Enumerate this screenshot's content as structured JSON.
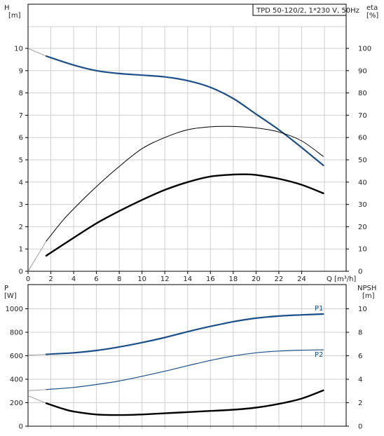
{
  "pump_label": "TPD 50-120/2, 1*230 V, 50Hz",
  "colors": {
    "blue": "#1b4f8a",
    "black": "#000000",
    "grid": "#cfcfcf"
  },
  "chart_data": [
    {
      "type": "line",
      "name": "top",
      "xlabel": "Q [m³/h]",
      "xlim": [
        0,
        26
      ],
      "x_ticks": [
        0,
        2,
        4,
        6,
        8,
        10,
        12,
        14,
        16,
        18,
        20,
        22,
        24
      ],
      "ylabel_left": "H",
      "ylabel_left_unit": "[m]",
      "ylim_left": [
        0,
        11
      ],
      "y_ticks_left": [
        0,
        1,
        2,
        3,
        4,
        5,
        6,
        7,
        8,
        9,
        10
      ],
      "ylabel_right": "eta",
      "ylabel_right_unit": "[%]",
      "ylim_right": [
        0,
        110
      ],
      "y_ticks_right": [
        0,
        10,
        20,
        30,
        40,
        50,
        60,
        70,
        80,
        90,
        100
      ],
      "grid": true,
      "series": [
        {
          "axis": "left",
          "color": "#1b4f8a",
          "width": 2.2,
          "extrapolate_from": [
            0,
            10
          ],
          "x": [
            1.6,
            4,
            6,
            8,
            10,
            12,
            14,
            16,
            18,
            20,
            22,
            24,
            25.9
          ],
          "y": [
            9.65,
            9.25,
            9.0,
            8.87,
            8.8,
            8.72,
            8.55,
            8.25,
            7.75,
            7.05,
            6.35,
            5.55,
            4.75
          ]
        },
        {
          "axis": "right",
          "color": "#000000",
          "width": 1.0,
          "extrapolate_from": [
            0,
            0
          ],
          "x": [
            1.6,
            3,
            4,
            6,
            8,
            10,
            12,
            14,
            16,
            17.6,
            20,
            22,
            24,
            25.9
          ],
          "y": [
            13.5,
            22.5,
            28,
            38,
            47,
            55,
            60,
            63.5,
            64.8,
            65,
            64.3,
            62.5,
            58.5,
            51.5
          ]
        },
        {
          "axis": "right",
          "color": "#000000",
          "width": 2.4,
          "extrapolate_from": null,
          "x": [
            1.6,
            4,
            6,
            8,
            10,
            12,
            14,
            16,
            18,
            19,
            20,
            22,
            24,
            25.9
          ],
          "y": [
            7,
            15,
            21.5,
            27,
            32,
            36.5,
            40,
            42.5,
            43.4,
            43.5,
            43.2,
            41.5,
            38.8,
            35
          ]
        }
      ]
    },
    {
      "type": "line",
      "name": "bottom",
      "xlim": [
        0,
        26
      ],
      "x_ticks": [
        0,
        2,
        4,
        6,
        8,
        10,
        12,
        14,
        16,
        18,
        20,
        22,
        24
      ],
      "ylabel_left": "P",
      "ylabel_left_unit": "[W]",
      "ylim_left": [
        0,
        1000
      ],
      "y_ticks_left": [
        0,
        200,
        400,
        600,
        800,
        1000
      ],
      "ylabel_right": "NPSH",
      "ylabel_right_unit": "[m]",
      "ylim_right": [
        0,
        10
      ],
      "y_ticks_right": [
        0,
        2,
        4,
        6,
        8,
        10
      ],
      "grid": true,
      "series": [
        {
          "name": "P1",
          "axis": "left",
          "color": "#1b4f8a",
          "width": 2.2,
          "extrapolate_from": [
            0,
            605
          ],
          "x": [
            1.6,
            4,
            6,
            8,
            10,
            12,
            14,
            16,
            18,
            20,
            22,
            24,
            25.9
          ],
          "y": [
            612,
            625,
            645,
            675,
            712,
            755,
            805,
            850,
            890,
            920,
            938,
            948,
            955
          ]
        },
        {
          "name": "P2",
          "axis": "left",
          "color": "#1b4f8a",
          "width": 1.2,
          "extrapolate_from": [
            0,
            302
          ],
          "x": [
            1.6,
            4,
            6,
            8,
            10,
            12,
            14,
            16,
            18,
            20,
            22,
            24,
            25.9
          ],
          "y": [
            312,
            330,
            355,
            385,
            425,
            468,
            515,
            560,
            598,
            625,
            640,
            647,
            650
          ]
        },
        {
          "axis": "right",
          "color": "#000000",
          "width": 2.4,
          "extrapolate_from": [
            0,
            2.6
          ],
          "x": [
            1.6,
            3,
            4,
            6,
            8,
            10,
            12,
            14,
            16,
            18,
            20,
            22,
            24,
            25.9
          ],
          "y": [
            1.95,
            1.5,
            1.25,
            1.0,
            0.95,
            1.0,
            1.1,
            1.2,
            1.3,
            1.4,
            1.58,
            1.9,
            2.35,
            3.05
          ]
        }
      ]
    }
  ]
}
